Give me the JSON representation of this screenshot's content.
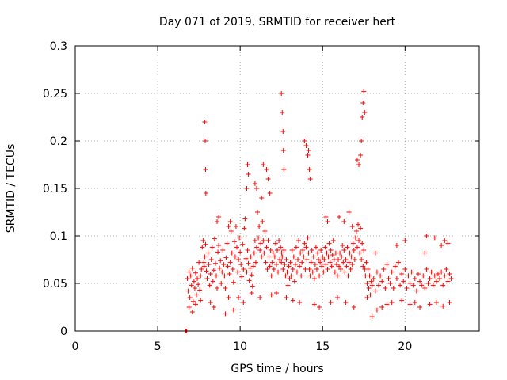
{
  "chart_data": {
    "type": "scatter",
    "title": "Day 071 of 2019, SRMTID for receiver hert",
    "xlabel": "GPS time / hours",
    "ylabel": "SRMTID / TECUs",
    "xlim": [
      0,
      24.5
    ],
    "ylim": [
      0,
      0.3
    ],
    "xticks": [
      0,
      5,
      10,
      15,
      20
    ],
    "xtick_labels": [
      "0",
      "5",
      "10",
      "15",
      "20"
    ],
    "yticks": [
      0,
      0.05,
      0.1,
      0.15,
      0.2,
      0.25,
      0.3
    ],
    "ytick_labels": [
      "0",
      "0.05",
      "0.1",
      "0.15",
      "0.2",
      "0.25",
      "0.3"
    ],
    "grid": true,
    "marker": "plus",
    "color": "#ff0000",
    "series": [
      {
        "name": "SRMTID",
        "x": [
          6.7,
          6.72,
          6.74,
          6.76,
          6.8,
          6.85,
          6.9,
          6.95,
          7.0,
          7.05,
          7.1,
          7.15,
          7.2,
          7.25,
          7.3,
          7.35,
          7.4,
          7.45,
          7.5,
          7.55,
          7.6,
          7.65,
          7.7,
          7.75,
          7.8,
          7.82,
          7.85,
          7.9,
          7.95,
          8.0,
          8.05,
          8.1,
          8.15,
          8.2,
          8.25,
          8.3,
          8.35,
          8.4,
          8.45,
          8.5,
          8.55,
          8.6,
          8.65,
          8.7,
          8.75,
          8.8,
          8.85,
          8.9,
          8.95,
          9.0,
          9.05,
          9.1,
          9.15,
          9.2,
          9.25,
          9.3,
          9.35,
          9.4,
          9.45,
          9.5,
          9.55,
          9.6,
          9.65,
          9.7,
          9.75,
          9.8,
          9.85,
          9.9,
          9.95,
          10.0,
          10.05,
          10.1,
          10.15,
          10.2,
          10.25,
          10.3,
          10.35,
          10.4,
          10.45,
          10.5,
          10.55,
          10.6,
          10.65,
          10.7,
          10.75,
          10.8,
          10.85,
          10.9,
          10.95,
          11.0,
          11.05,
          11.1,
          11.15,
          11.2,
          11.25,
          11.3,
          11.35,
          11.4,
          11.45,
          11.5,
          11.55,
          11.6,
          11.65,
          11.7,
          11.75,
          11.8,
          11.85,
          11.9,
          11.95,
          12.0,
          12.05,
          12.1,
          12.15,
          12.2,
          12.25,
          12.3,
          12.35,
          12.4,
          12.45,
          12.5,
          12.52,
          12.55,
          12.6,
          12.65,
          12.7,
          12.75,
          12.8,
          12.85,
          12.9,
          12.95,
          13.0,
          13.05,
          13.1,
          13.15,
          13.2,
          13.25,
          13.3,
          13.35,
          13.4,
          13.45,
          13.5,
          13.55,
          13.6,
          13.65,
          13.7,
          13.75,
          13.8,
          13.85,
          13.9,
          13.95,
          14.0,
          14.05,
          14.1,
          14.15,
          14.2,
          14.25,
          14.3,
          14.35,
          14.4,
          14.45,
          14.5,
          14.55,
          14.6,
          14.65,
          14.7,
          14.75,
          14.8,
          14.85,
          14.9,
          14.95,
          15.0,
          15.05,
          15.1,
          15.15,
          15.2,
          15.25,
          15.3,
          15.35,
          15.4,
          15.45,
          15.5,
          15.55,
          15.6,
          15.65,
          15.7,
          15.75,
          15.8,
          15.85,
          15.9,
          15.95,
          16.0,
          16.05,
          16.1,
          16.15,
          16.2,
          16.25,
          16.3,
          16.35,
          16.4,
          16.45,
          16.5,
          16.55,
          16.6,
          16.65,
          16.7,
          16.75,
          16.8,
          16.85,
          16.9,
          16.95,
          17.0,
          17.05,
          17.1,
          17.15,
          17.2,
          17.25,
          17.3,
          17.35,
          17.4,
          17.45,
          17.5,
          17.55,
          17.6,
          17.65,
          17.7,
          17.75,
          17.8,
          17.85,
          17.9,
          17.95,
          18.0,
          18.1,
          18.2,
          18.3,
          18.4,
          18.5,
          18.6,
          18.7,
          18.8,
          18.9,
          19.0,
          19.1,
          19.2,
          19.3,
          19.4,
          19.5,
          19.6,
          19.7,
          19.8,
          19.9,
          20.0,
          20.1,
          20.2,
          20.3,
          20.4,
          20.5,
          20.6,
          20.7,
          20.8,
          20.9,
          21.0,
          21.1,
          21.2,
          21.3,
          21.4,
          21.5,
          21.6,
          21.7,
          21.8,
          21.9,
          22.0,
          22.1,
          22.2,
          22.3,
          22.4,
          22.5,
          22.6,
          22.7,
          22.8,
          7.85,
          7.88,
          7.9,
          7.92,
          8.6,
          8.7,
          9.3,
          9.4,
          10.4,
          10.45,
          10.5,
          10.9,
          11.0,
          11.3,
          11.4,
          11.6,
          11.7,
          11.8,
          12.5,
          12.55,
          12.6,
          12.62,
          12.65,
          13.9,
          14.0,
          14.1,
          14.15,
          14.2,
          14.25,
          15.2,
          15.3,
          16.0,
          16.3,
          16.6,
          16.8,
          17.1,
          17.2,
          17.3,
          17.35,
          17.4,
          17.45,
          17.5,
          17.55,
          18.2,
          19.5,
          20.0,
          21.2,
          21.3,
          21.8,
          22.2,
          22.4,
          22.6,
          6.9,
          7.1,
          7.3,
          7.6,
          8.2,
          8.4,
          9.1,
          9.6,
          9.9,
          10.2,
          10.7,
          11.2,
          11.9,
          12.2,
          12.8,
          13.2,
          13.6,
          14.5,
          14.8,
          15.5,
          15.9,
          16.4,
          16.9,
          17.7,
          18.0,
          18.3,
          18.6,
          18.9,
          19.2,
          19.8,
          20.3,
          20.6,
          20.9,
          21.5,
          21.9,
          22.3,
          22.7
        ],
        "y": [
          0.0,
          0.0,
          0.0,
          0.0,
          0.055,
          0.042,
          0.062,
          0.035,
          0.058,
          0.048,
          0.066,
          0.031,
          0.052,
          0.045,
          0.061,
          0.038,
          0.055,
          0.049,
          0.072,
          0.043,
          0.058,
          0.065,
          0.088,
          0.095,
          0.072,
          0.068,
          0.078,
          0.091,
          0.063,
          0.055,
          0.082,
          0.07,
          0.048,
          0.06,
          0.075,
          0.088,
          0.052,
          0.064,
          0.097,
          0.071,
          0.058,
          0.045,
          0.083,
          0.09,
          0.066,
          0.074,
          0.05,
          0.062,
          0.085,
          0.07,
          0.058,
          0.045,
          0.077,
          0.092,
          0.068,
          0.035,
          0.06,
          0.072,
          0.105,
          0.082,
          0.065,
          0.051,
          0.094,
          0.078,
          0.11,
          0.088,
          0.062,
          0.075,
          0.098,
          0.083,
          0.07,
          0.057,
          0.091,
          0.065,
          0.108,
          0.118,
          0.076,
          0.062,
          0.085,
          0.071,
          0.053,
          0.066,
          0.078,
          0.059,
          0.047,
          0.068,
          0.082,
          0.095,
          0.072,
          0.088,
          0.125,
          0.098,
          0.11,
          0.085,
          0.092,
          0.078,
          0.115,
          0.095,
          0.082,
          0.105,
          0.072,
          0.088,
          0.065,
          0.095,
          0.078,
          0.068,
          0.085,
          0.058,
          0.072,
          0.082,
          0.065,
          0.078,
          0.092,
          0.07,
          0.085,
          0.062,
          0.095,
          0.075,
          0.088,
          0.072,
          0.082,
          0.078,
          0.065,
          0.085,
          0.07,
          0.058,
          0.075,
          0.062,
          0.048,
          0.068,
          0.055,
          0.072,
          0.058,
          0.085,
          0.065,
          0.078,
          0.052,
          0.07,
          0.088,
          0.062,
          0.075,
          0.095,
          0.068,
          0.082,
          0.058,
          0.072,
          0.085,
          0.078,
          0.092,
          0.065,
          0.088,
          0.075,
          0.098,
          0.082,
          0.065,
          0.058,
          0.072,
          0.085,
          0.062,
          0.078,
          0.055,
          0.07,
          0.088,
          0.065,
          0.082,
          0.075,
          0.058,
          0.072,
          0.085,
          0.068,
          0.078,
          0.062,
          0.075,
          0.088,
          0.07,
          0.082,
          0.065,
          0.078,
          0.092,
          0.072,
          0.085,
          0.068,
          0.08,
          0.095,
          0.075,
          0.062,
          0.082,
          0.07,
          0.058,
          0.075,
          0.068,
          0.082,
          0.065,
          0.078,
          0.09,
          0.072,
          0.085,
          0.062,
          0.075,
          0.068,
          0.088,
          0.058,
          0.072,
          0.082,
          0.065,
          0.078,
          0.07,
          0.092,
          0.085,
          0.075,
          0.098,
          0.105,
          0.088,
          0.112,
          0.095,
          0.082,
          0.108,
          0.075,
          0.092,
          0.068,
          0.085,
          0.065,
          0.058,
          0.072,
          0.05,
          0.065,
          0.045,
          0.058,
          0.038,
          0.052,
          0.048,
          0.055,
          0.042,
          0.062,
          0.048,
          0.058,
          0.052,
          0.065,
          0.045,
          0.07,
          0.055,
          0.05,
          0.062,
          0.045,
          0.068,
          0.055,
          0.072,
          0.048,
          0.06,
          0.052,
          0.065,
          0.045,
          0.058,
          0.05,
          0.062,
          0.048,
          0.055,
          0.042,
          0.06,
          0.052,
          0.048,
          0.058,
          0.045,
          0.065,
          0.05,
          0.055,
          0.062,
          0.048,
          0.058,
          0.052,
          0.06,
          0.055,
          0.062,
          0.048,
          0.058,
          0.065,
          0.052,
          0.06,
          0.055,
          0.22,
          0.2,
          0.17,
          0.145,
          0.115,
          0.12,
          0.11,
          0.115,
          0.15,
          0.175,
          0.165,
          0.155,
          0.15,
          0.14,
          0.175,
          0.17,
          0.16,
          0.145,
          0.25,
          0.23,
          0.21,
          0.19,
          0.17,
          0.2,
          0.195,
          0.185,
          0.19,
          0.17,
          0.16,
          0.12,
          0.115,
          0.12,
          0.115,
          0.125,
          0.11,
          0.18,
          0.175,
          0.185,
          0.2,
          0.225,
          0.24,
          0.252,
          0.23,
          0.082,
          0.09,
          0.095,
          0.082,
          0.1,
          0.098,
          0.09,
          0.095,
          0.092,
          0.025,
          0.02,
          0.028,
          0.032,
          0.03,
          0.025,
          0.018,
          0.022,
          0.035,
          0.03,
          0.04,
          0.035,
          0.038,
          0.04,
          0.035,
          0.032,
          0.03,
          0.028,
          0.025,
          0.03,
          0.035,
          0.03,
          0.025,
          0.035,
          0.015,
          0.022,
          0.025,
          0.028,
          0.03,
          0.032,
          0.028,
          0.03,
          0.025,
          0.028,
          0.03,
          0.026,
          0.03
        ]
      }
    ]
  }
}
